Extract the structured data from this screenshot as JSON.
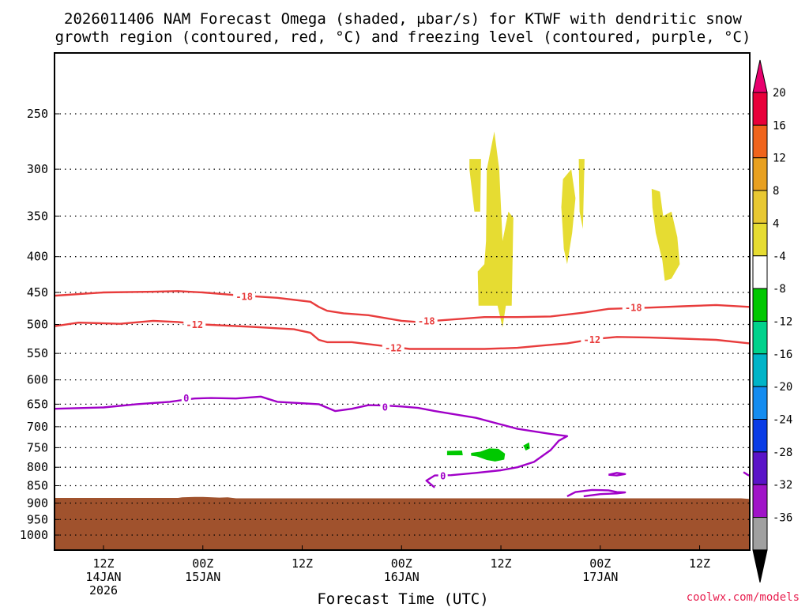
{
  "chart_data": {
    "type": "contour",
    "title_line1": "2026011406 NAM Forecast Omega (shaded, μbar/s) for KTWF with dendritic snow",
    "title_line2": "growth region (contoured, red, °C) and freezing level (contoured, purple, °C)",
    "xlabel": "Forecast Time (UTC)",
    "ylabel": "",
    "credit": "coolwx.com/models",
    "x_ticks": [
      {
        "hour": 6,
        "l1": "12Z",
        "l2": "14JAN",
        "l3": "2026"
      },
      {
        "hour": 18,
        "l1": "00Z",
        "l2": "15JAN",
        "l3": ""
      },
      {
        "hour": 30,
        "l1": "12Z",
        "l2": "",
        "l3": ""
      },
      {
        "hour": 42,
        "l1": "00Z",
        "l2": "16JAN",
        "l3": ""
      },
      {
        "hour": 54,
        "l1": "12Z",
        "l2": "",
        "l3": ""
      },
      {
        "hour": 66,
        "l1": "00Z",
        "l2": "17JAN",
        "l3": ""
      },
      {
        "hour": 78,
        "l1": "12Z",
        "l2": "",
        "l3": ""
      }
    ],
    "x_range_hours": [
      0,
      84
    ],
    "y_ticks": [
      250,
      300,
      350,
      400,
      450,
      500,
      550,
      600,
      650,
      700,
      750,
      800,
      850,
      900,
      950,
      1000
    ],
    "y_range_hpa": [
      200,
      1050
    ],
    "colorbar_labels": [
      "20",
      "16",
      "12",
      "8",
      "4",
      "-4",
      "-8",
      "-12",
      "-16",
      "-20",
      "-24",
      "-28",
      "-32",
      "-36"
    ],
    "colorbar_colors": [
      "#e8003a",
      "#f0641c",
      "#e8a020",
      "#e8c832",
      "#e6dc32",
      "#ffffff",
      "#00c800",
      "#00d28c",
      "#00b4c8",
      "#148cf0",
      "#0a3ce6",
      "#5a14c8",
      "#a014c8",
      "#a0a0a0"
    ],
    "contours": [
      {
        "name": "-18C",
        "color": "#e83c3c",
        "label": "-18",
        "points": [
          [
            0,
            455
          ],
          [
            6,
            450
          ],
          [
            12,
            449
          ],
          [
            15,
            448
          ],
          [
            18,
            450
          ],
          [
            22,
            454
          ],
          [
            27,
            458
          ],
          [
            31,
            464
          ],
          [
            32,
            472
          ],
          [
            33,
            478
          ],
          [
            35,
            482
          ],
          [
            38,
            485
          ],
          [
            42,
            494
          ],
          [
            44,
            496
          ],
          [
            48,
            492
          ],
          [
            52,
            488
          ],
          [
            56,
            488
          ],
          [
            60,
            487
          ],
          [
            64,
            481
          ],
          [
            67,
            475
          ],
          [
            72,
            473
          ],
          [
            76,
            471
          ],
          [
            80,
            469
          ],
          [
            84,
            472
          ]
        ],
        "labels_at": [
          [
            23,
            456
          ],
          [
            45,
            494
          ],
          [
            70,
            473
          ]
        ]
      },
      {
        "name": "-12C",
        "color": "#e83c3c",
        "label": "-12",
        "points": [
          [
            0,
            503
          ],
          [
            3,
            497
          ],
          [
            8,
            499
          ],
          [
            12,
            494
          ],
          [
            15,
            496
          ],
          [
            18,
            500
          ],
          [
            24,
            504
          ],
          [
            29,
            508
          ],
          [
            31,
            514
          ],
          [
            32,
            526
          ],
          [
            33,
            530
          ],
          [
            36,
            530
          ],
          [
            40,
            537
          ],
          [
            43,
            542
          ],
          [
            47,
            542
          ],
          [
            52,
            542
          ],
          [
            56,
            540
          ],
          [
            59,
            536
          ],
          [
            62,
            532
          ],
          [
            65,
            525
          ],
          [
            68,
            521
          ],
          [
            72,
            522
          ],
          [
            76,
            524
          ],
          [
            80,
            526
          ],
          [
            84,
            532
          ]
        ],
        "labels_at": [
          [
            17,
            500
          ],
          [
            41,
            540
          ],
          [
            65,
            525
          ]
        ]
      },
      {
        "name": "0C",
        "color": "#a000c8",
        "label": "0",
        "points": [
          [
            0,
            660
          ],
          [
            6,
            657
          ],
          [
            10,
            650
          ],
          [
            14,
            645
          ],
          [
            16,
            640
          ],
          [
            17,
            638
          ],
          [
            19,
            637
          ],
          [
            22,
            638
          ],
          [
            25,
            634
          ],
          [
            27,
            645
          ],
          [
            32,
            650
          ],
          [
            34,
            665
          ],
          [
            36,
            660
          ],
          [
            38,
            652
          ],
          [
            40,
            653
          ],
          [
            42,
            655
          ],
          [
            44,
            658
          ],
          [
            46,
            665
          ],
          [
            51,
            680
          ],
          [
            56,
            705
          ],
          [
            60,
            717
          ],
          [
            62,
            722
          ],
          [
            61,
            733
          ],
          [
            60,
            756
          ],
          [
            58,
            786
          ],
          [
            56,
            800
          ],
          [
            54,
            808
          ],
          [
            51,
            815
          ],
          [
            48,
            821
          ],
          [
            46,
            822
          ],
          [
            45,
            836
          ],
          [
            46,
            855
          ]
        ],
        "labels_at": [
          [
            16,
            637
          ],
          [
            40,
            656
          ],
          [
            47,
            823
          ]
        ]
      },
      {
        "name": "0C-small1",
        "color": "#a000c8",
        "label": "",
        "points": [
          [
            62,
            880
          ],
          [
            63,
            868
          ],
          [
            65,
            862
          ],
          [
            67,
            863
          ],
          [
            68,
            868
          ],
          [
            69,
            869
          ],
          [
            68,
            872
          ],
          [
            66,
            874
          ],
          [
            64,
            880
          ]
        ],
        "labels_at": []
      },
      {
        "name": "0C-small2",
        "color": "#a000c8",
        "label": "",
        "points": [
          [
            67,
            820
          ],
          [
            68,
            815
          ],
          [
            69,
            818
          ],
          [
            68,
            822
          ],
          [
            67,
            820
          ]
        ],
        "labels_at": []
      },
      {
        "name": "0C-small3",
        "color": "#a000c8",
        "label": "",
        "points": [
          [
            83.3,
            813
          ],
          [
            83.8,
            820
          ],
          [
            84,
            822
          ]
        ],
        "labels_at": []
      }
    ],
    "shaded_regions": [
      {
        "name": "yellow-omega-1",
        "color": "#e6dc32",
        "points": [
          [
            50.2,
            290
          ],
          [
            51.6,
            290
          ],
          [
            51.5,
            345
          ],
          [
            50.8,
            345
          ],
          [
            50.2,
            300
          ]
        ]
      },
      {
        "name": "yellow-omega-2",
        "color": "#e6dc32",
        "points": [
          [
            52.3,
            300
          ],
          [
            53.2,
            265
          ],
          [
            53.8,
            300
          ],
          [
            54.2,
            380
          ],
          [
            54.9,
            345
          ],
          [
            55.5,
            352
          ],
          [
            55.3,
            470
          ],
          [
            54.6,
            470
          ],
          [
            54.2,
            505
          ],
          [
            53.6,
            470
          ],
          [
            52.6,
            470
          ],
          [
            51.3,
            470
          ],
          [
            51.2,
            420
          ],
          [
            52,
            410
          ],
          [
            52.2,
            380
          ]
        ]
      },
      {
        "name": "yellow-omega-3",
        "color": "#e6dc32",
        "points": [
          [
            61.5,
            310
          ],
          [
            62.5,
            300
          ],
          [
            63,
            330
          ],
          [
            62.6,
            370
          ],
          [
            62,
            410
          ],
          [
            61.6,
            390
          ],
          [
            61.3,
            340
          ]
        ]
      },
      {
        "name": "yellow-omega-4",
        "color": "#e6dc32",
        "points": [
          [
            63.4,
            290
          ],
          [
            64.1,
            290
          ],
          [
            63.9,
            365
          ],
          [
            63.5,
            345
          ]
        ]
      },
      {
        "name": "yellow-omega-5",
        "color": "#e6dc32",
        "points": [
          [
            72.2,
            320
          ],
          [
            73.2,
            323
          ],
          [
            73.6,
            350
          ],
          [
            74.6,
            345
          ],
          [
            75.3,
            375
          ],
          [
            75.6,
            410
          ],
          [
            74.6,
            430
          ],
          [
            73.8,
            433
          ],
          [
            73.5,
            405
          ],
          [
            72.7,
            370
          ],
          [
            72.3,
            340
          ]
        ]
      },
      {
        "name": "green-omega-1",
        "color": "#00c800",
        "points": [
          [
            47.5,
            758
          ],
          [
            49.3,
            757
          ],
          [
            49.4,
            769
          ],
          [
            47.5,
            769
          ]
        ]
      },
      {
        "name": "green-omega-2",
        "color": "#00c800",
        "points": [
          [
            50.4,
            763
          ],
          [
            51.5,
            760
          ],
          [
            52.6,
            752
          ],
          [
            53.7,
            753
          ],
          [
            54.5,
            765
          ],
          [
            54.4,
            780
          ],
          [
            53.3,
            785
          ],
          [
            52.3,
            781
          ],
          [
            51.1,
            772
          ],
          [
            50.4,
            770
          ]
        ]
      },
      {
        "name": "green-omega-3",
        "color": "#00c800",
        "points": [
          [
            56.7,
            745
          ],
          [
            57.4,
            737
          ],
          [
            57.5,
            752
          ],
          [
            57,
            757
          ]
        ]
      }
    ],
    "terrain": {
      "color": "#a0522d",
      "points": [
        [
          0,
          885
        ],
        [
          15,
          885
        ],
        [
          15.5,
          883
        ],
        [
          17,
          882
        ],
        [
          18,
          882
        ],
        [
          20,
          884
        ],
        [
          21,
          883
        ],
        [
          22,
          886
        ],
        [
          83,
          886
        ],
        [
          84,
          888
        ],
        [
          84,
          1050
        ],
        [
          0,
          1050
        ]
      ]
    }
  }
}
